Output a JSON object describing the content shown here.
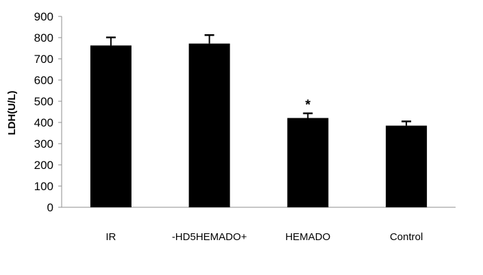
{
  "chart_data": {
    "type": "bar",
    "title": "",
    "xlabel": "",
    "ylabel": "LDH(U/L)",
    "ylim": [
      0,
      900
    ],
    "yticks": [
      0,
      100,
      200,
      300,
      400,
      500,
      600,
      700,
      800,
      900
    ],
    "categories": [
      "IR",
      "-HD5HEMADO+",
      "HEMADO",
      "Control"
    ],
    "values": [
      763,
      772,
      421,
      385
    ],
    "errors": [
      38,
      40,
      22,
      20
    ],
    "annotations": [
      "",
      "",
      "*",
      ""
    ],
    "bar_color": "#000000",
    "grid": false,
    "legend": "none"
  }
}
